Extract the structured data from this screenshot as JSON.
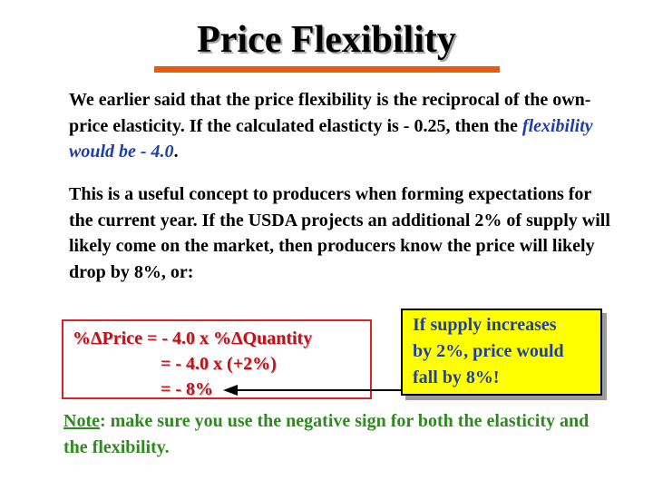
{
  "slide": {
    "title": "Price Flexibility",
    "paragraph1": {
      "text_before": "We earlier said that the price flexibility is the reciprocal of the own-price elasticity.  If the calculated elasticty is - 0.25, then the ",
      "highlight": "flexibility would be - 4.0",
      "text_after": "."
    },
    "paragraph2": "This is a useful concept to producers when forming expectations for the current year. If the USDA projects an additional  2% of supply will likely come on the market, then producers know the price will likely drop by 8%, or:",
    "equation": {
      "line1": "%ΔPrice = - 4.0 x %ΔQuantity",
      "line2": "= - 4.0 x (+2%)",
      "line3": "= - 8%"
    },
    "callout": {
      "line1": "If supply increases",
      "line2": "by 2%, price would",
      "line3": "fall by 8%!"
    },
    "note": {
      "label": "Note",
      "text": ": make sure you use the negative sign for both the elasticity and the flexibility."
    },
    "colors": {
      "title_rule": "#e85a0e",
      "highlight_text": "#1f3fa6",
      "equation_text": "#c0121a",
      "equation_border": "#d8222a",
      "callout_fill": "#ffff00",
      "note_text": "#2e8a1f"
    },
    "icons": {
      "arrow": "left-arrow-icon"
    }
  }
}
